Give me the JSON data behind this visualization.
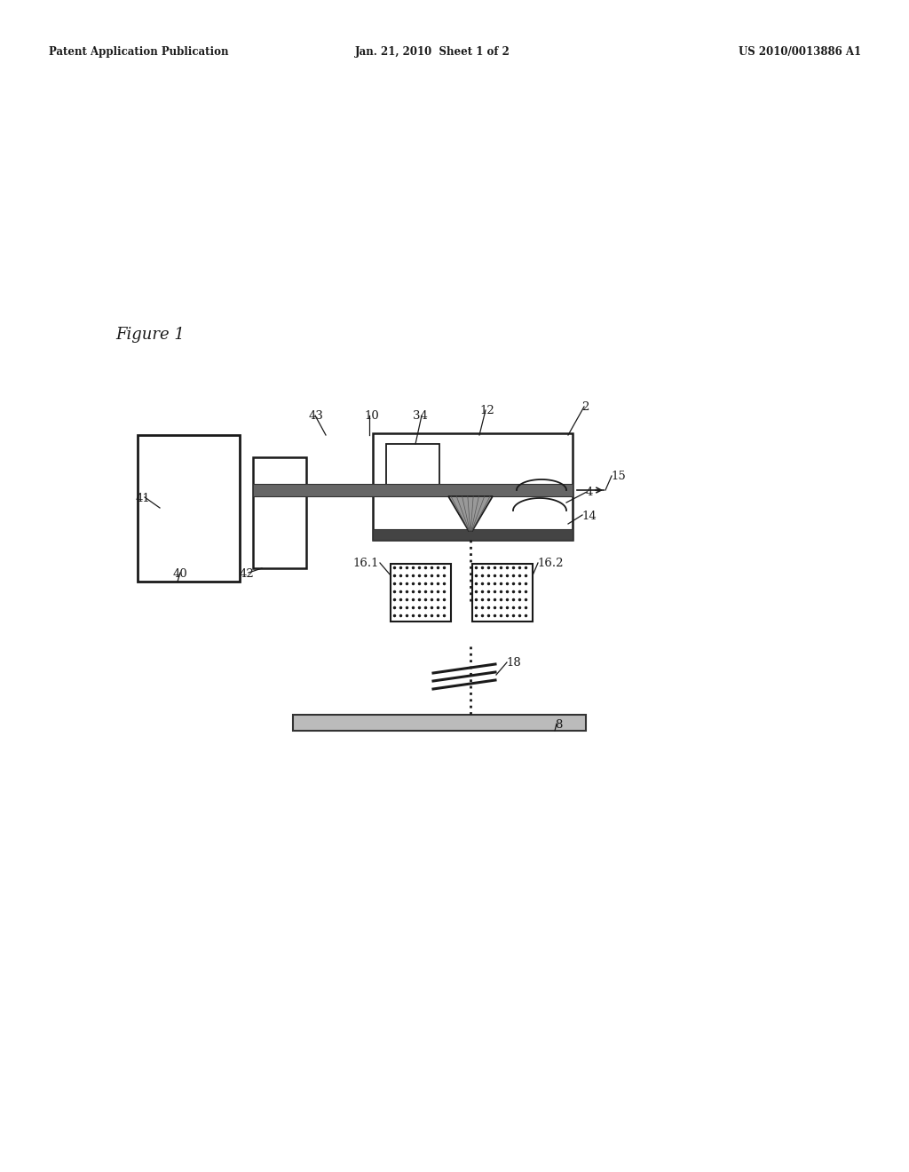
{
  "title_left": "Patent Application Publication",
  "title_mid": "Jan. 21, 2010  Sheet 1 of 2",
  "title_right": "US 2010/0013886 A1",
  "figure_label": "Figure 1",
  "bg_color": "#ffffff",
  "line_color": "#1a1a1a",
  "fig_width": 10.24,
  "fig_height": 13.2,
  "dpi": 100
}
